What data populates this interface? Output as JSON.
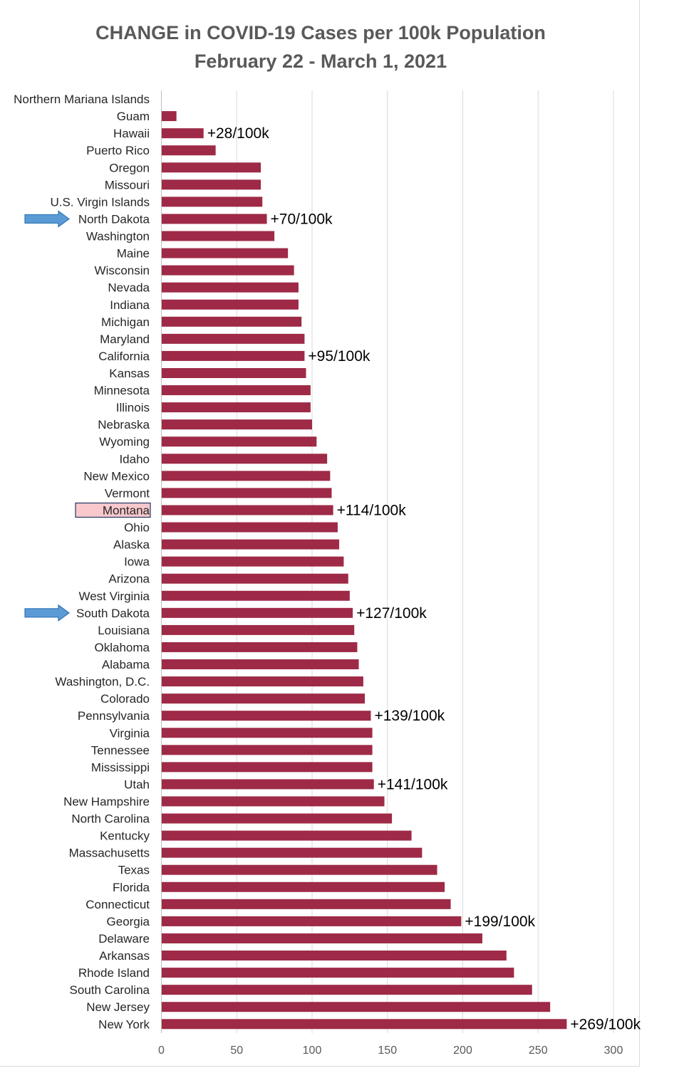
{
  "chart_data": {
    "type": "bar",
    "orientation": "horizontal",
    "title": "CHANGE in COVID-19 Cases per 100k Population",
    "subtitle": "February 22 - March 1, 2021",
    "xlabel": "",
    "ylabel": "",
    "xlim": [
      0,
      300
    ],
    "xticks": [
      0,
      50,
      100,
      150,
      200,
      250,
      300
    ],
    "grid": true,
    "bar_color": "#9e2a47",
    "categories": [
      "Northern Mariana Islands",
      "Guam",
      "Hawaii",
      "Puerto Rico",
      "Oregon",
      "Missouri",
      "U.S. Virgin Islands",
      "North Dakota",
      "Washington",
      "Maine",
      "Wisconsin",
      "Nevada",
      "Indiana",
      "Michigan",
      "Maryland",
      "California",
      "Kansas",
      "Minnesota",
      "Illinois",
      "Nebraska",
      "Wyoming",
      "Idaho",
      "New Mexico",
      "Vermont",
      "Montana",
      "Ohio",
      "Alaska",
      "Iowa",
      "Arizona",
      "West Virginia",
      "South Dakota",
      "Louisiana",
      "Oklahoma",
      "Alabama",
      "Washington, D.C.",
      "Colorado",
      "Pennsylvania",
      "Virginia",
      "Tennessee",
      "Mississippi",
      "Utah",
      "New Hampshire",
      "North Carolina",
      "Kentucky",
      "Massachusetts",
      "Texas",
      "Florida",
      "Connecticut",
      "Georgia",
      "Delaware",
      "Arkansas",
      "Rhode Island",
      "South Carolina",
      "New Jersey",
      "New York"
    ],
    "values": [
      0,
      10,
      28,
      36,
      66,
      66,
      67,
      70,
      75,
      84,
      88,
      91,
      91,
      93,
      95,
      95,
      96,
      99,
      99,
      100,
      103,
      110,
      112,
      113,
      114,
      117,
      118,
      121,
      124,
      125,
      127,
      128,
      130,
      131,
      134,
      135,
      139,
      140,
      140,
      140,
      141,
      148,
      153,
      166,
      173,
      183,
      188,
      192,
      199,
      213,
      229,
      234,
      246,
      258,
      269
    ],
    "annotations": [
      {
        "category": "Hawaii",
        "text": "+28/100k"
      },
      {
        "category": "North Dakota",
        "text": "+70/100k"
      },
      {
        "category": "California",
        "text": "+95/100k"
      },
      {
        "category": "Montana",
        "text": "+114/100k"
      },
      {
        "category": "South Dakota",
        "text": "+127/100k"
      },
      {
        "category": "Pennsylvania",
        "text": "+139/100k"
      },
      {
        "category": "Utah",
        "text": "+141/100k"
      },
      {
        "category": "Georgia",
        "text": "+199/100k"
      },
      {
        "category": "New York",
        "text": "+269/100k"
      }
    ],
    "highlighted_category": "Montana",
    "highlight_color": "#f8c8cc",
    "arrow_markers": [
      "North Dakota",
      "South Dakota"
    ],
    "arrow_color": "#5b9bd5"
  }
}
